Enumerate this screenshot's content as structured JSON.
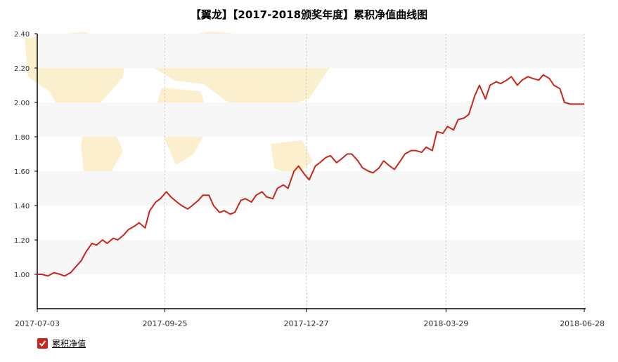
{
  "chart_data": {
    "type": "line",
    "title": "【翼龙】【2017-2018颁奖年度】累积净值曲线图",
    "xlabel": "",
    "ylabel": "",
    "x_range": [
      "2017-07-03",
      "2018-06-28"
    ],
    "ylim": [
      0.8,
      2.4
    ],
    "y_ticks": [
      "1.00",
      "1.20",
      "1.40",
      "1.60",
      "1.80",
      "2.00",
      "2.20",
      "2.40"
    ],
    "x_ticks": [
      "2017-07-03",
      "2017-09-25",
      "2017-12-27",
      "2018-03-29",
      "2018-06-28"
    ],
    "grid": "horizontal bands, dashed vertical lines",
    "legend_position": "bottom-left",
    "colors": {
      "line": "#c9261b",
      "band": "#f7f7f7"
    },
    "series": [
      {
        "name": "累积净值",
        "x": [
          "2017-07-03",
          "2017-07-06",
          "2017-07-10",
          "2017-07-14",
          "2017-07-18",
          "2017-07-21",
          "2017-07-25",
          "2017-07-28",
          "2017-08-01",
          "2017-08-04",
          "2017-08-08",
          "2017-08-11",
          "2017-08-15",
          "2017-08-18",
          "2017-08-22",
          "2017-08-25",
          "2017-08-29",
          "2017-09-01",
          "2017-09-05",
          "2017-09-08",
          "2017-09-12",
          "2017-09-15",
          "2017-09-19",
          "2017-09-22",
          "2017-09-26",
          "2017-09-29",
          "2017-10-03",
          "2017-10-06",
          "2017-10-10",
          "2017-10-13",
          "2017-10-17",
          "2017-10-20",
          "2017-10-24",
          "2017-10-27",
          "2017-10-31",
          "2017-11-03",
          "2017-11-07",
          "2017-11-10",
          "2017-11-14",
          "2017-11-17",
          "2017-11-21",
          "2017-11-24",
          "2017-11-28",
          "2017-12-01",
          "2017-12-05",
          "2017-12-08",
          "2017-12-12",
          "2017-12-15",
          "2017-12-19",
          "2017-12-22",
          "2017-12-26",
          "2017-12-29",
          "2018-01-02",
          "2018-01-05",
          "2018-01-09",
          "2018-01-12",
          "2018-01-16",
          "2018-01-19",
          "2018-01-23",
          "2018-01-26",
          "2018-01-30",
          "2018-02-02",
          "2018-02-06",
          "2018-02-09",
          "2018-02-13",
          "2018-02-16",
          "2018-02-20",
          "2018-02-23",
          "2018-02-27",
          "2018-03-02",
          "2018-03-06",
          "2018-03-09",
          "2018-03-13",
          "2018-03-16",
          "2018-03-20",
          "2018-03-23",
          "2018-03-27",
          "2018-03-30",
          "2018-04-03",
          "2018-04-06",
          "2018-04-10",
          "2018-04-13",
          "2018-04-17",
          "2018-04-20",
          "2018-04-24",
          "2018-04-27",
          "2018-05-01",
          "2018-05-04",
          "2018-05-08",
          "2018-05-11",
          "2018-05-15",
          "2018-05-18",
          "2018-05-22",
          "2018-05-25",
          "2018-05-29",
          "2018-06-01",
          "2018-06-05",
          "2018-06-08",
          "2018-06-12",
          "2018-06-15",
          "2018-06-19",
          "2018-06-22",
          "2018-06-26",
          "2018-06-28"
        ],
        "values": [
          1.0,
          1.0,
          0.99,
          1.01,
          1.0,
          0.99,
          1.01,
          1.04,
          1.08,
          1.13,
          1.18,
          1.17,
          1.2,
          1.18,
          1.21,
          1.2,
          1.23,
          1.26,
          1.28,
          1.3,
          1.27,
          1.37,
          1.42,
          1.44,
          1.48,
          1.45,
          1.42,
          1.4,
          1.38,
          1.4,
          1.43,
          1.46,
          1.46,
          1.4,
          1.36,
          1.37,
          1.35,
          1.36,
          1.43,
          1.44,
          1.42,
          1.46,
          1.48,
          1.45,
          1.44,
          1.5,
          1.52,
          1.5,
          1.6,
          1.63,
          1.58,
          1.55,
          1.63,
          1.65,
          1.68,
          1.69,
          1.65,
          1.67,
          1.7,
          1.7,
          1.66,
          1.62,
          1.6,
          1.59,
          1.62,
          1.66,
          1.63,
          1.61,
          1.66,
          1.7,
          1.72,
          1.72,
          1.71,
          1.74,
          1.72,
          1.83,
          1.82,
          1.86,
          1.84,
          1.9,
          1.91,
          1.93,
          2.04,
          2.1,
          2.02,
          2.1,
          2.12,
          2.11,
          2.13,
          2.15,
          2.1,
          2.13,
          2.15,
          2.14,
          2.13,
          2.16,
          2.14,
          2.1,
          2.08,
          2.0,
          1.99,
          1.99,
          1.99,
          1.99
        ]
      }
    ]
  }
}
